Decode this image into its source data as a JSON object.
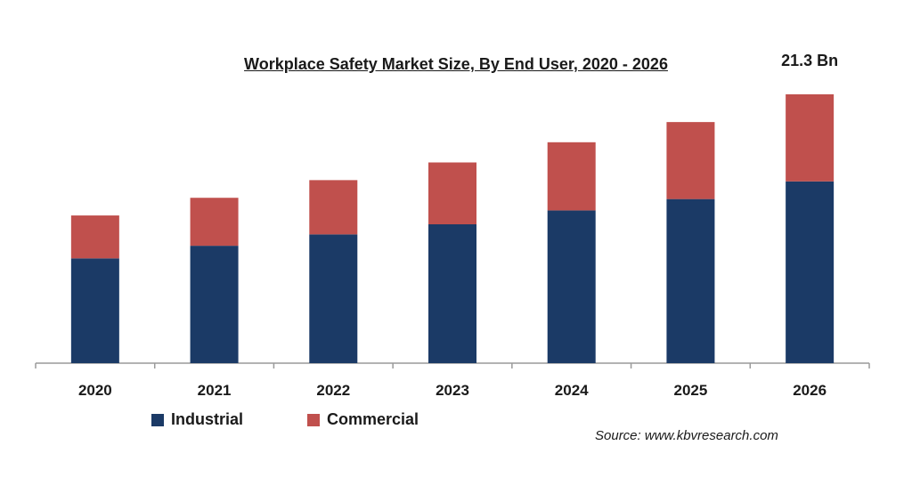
{
  "chart_data": {
    "type": "bar",
    "stacked": true,
    "title": "Workplace Safety Market Size, By End User, 2020 - 2026",
    "categories": [
      "2020",
      "2021",
      "2022",
      "2023",
      "2024",
      "2025",
      "2026"
    ],
    "series": [
      {
        "name": "Industrial",
        "color": "#1b3a66",
        "values": [
          8.3,
          9.3,
          10.2,
          11.0,
          12.1,
          13.0,
          14.4
        ]
      },
      {
        "name": "Commercial",
        "color": "#c0504d",
        "values": [
          3.4,
          3.8,
          4.3,
          4.9,
          5.4,
          6.1,
          6.9
        ]
      }
    ],
    "ylim": [
      0,
      22
    ],
    "annotation": {
      "category": "2026",
      "text": "21.3 Bn"
    },
    "legend": "bottom-left"
  },
  "source": "Source: www.kbvresearch.com"
}
